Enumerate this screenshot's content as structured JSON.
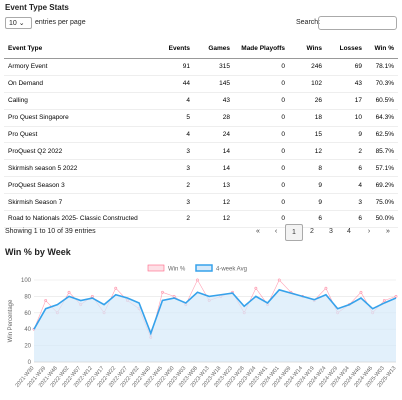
{
  "header": {
    "title": "Event Type Stats"
  },
  "controls": {
    "page_size": "10",
    "page_size_suffix": "entries per page",
    "search_label": "Search:"
  },
  "table": {
    "headers": [
      "Event Type",
      "Events",
      "Games",
      "Made Playoffs",
      "Wins",
      "Losses",
      "Win %"
    ],
    "rows": [
      [
        "Armory Event",
        "91",
        "315",
        "0",
        "246",
        "69",
        "78.1%"
      ],
      [
        "On Demand",
        "44",
        "145",
        "0",
        "102",
        "43",
        "70.3%"
      ],
      [
        "Calling",
        "4",
        "43",
        "0",
        "26",
        "17",
        "60.5%"
      ],
      [
        "Pro Quest Singapore",
        "5",
        "28",
        "0",
        "18",
        "10",
        "64.3%"
      ],
      [
        "Pro Quest",
        "4",
        "24",
        "0",
        "15",
        "9",
        "62.5%"
      ],
      [
        "ProQuest Q2 2022",
        "3",
        "14",
        "0",
        "12",
        "2",
        "85.7%"
      ],
      [
        "Skirmish season 5 2022",
        "3",
        "14",
        "0",
        "8",
        "6",
        "57.1%"
      ],
      [
        "ProQuest Season 3",
        "2",
        "13",
        "0",
        "9",
        "4",
        "69.2%"
      ],
      [
        "Skirmish Season 7",
        "3",
        "12",
        "0",
        "9",
        "3",
        "75.0%"
      ],
      [
        "Road to Nationals 2025- Classic Constructed",
        "2",
        "12",
        "0",
        "6",
        "6",
        "50.0%"
      ]
    ]
  },
  "footer": {
    "info": "Showing 1 to 10 of 39 entries",
    "pages": [
      "«",
      "‹",
      "1",
      "2",
      "3",
      "4",
      "›",
      "»"
    ]
  },
  "chart_data": {
    "type": "line",
    "title": "Win % by Week",
    "y_label": "Win Percentage",
    "categories": [
      "2021-W30",
      "2021-W39",
      "2021-W48",
      "2022-W02",
      "2022-W07",
      "2022-W12",
      "2022-W17",
      "2022-W22",
      "2022-W27",
      "2022-W32",
      "2022-W40",
      "2022-W45",
      "2022-W50",
      "2023-W03",
      "2023-W08",
      "2023-W13",
      "2023-W18",
      "2023-W23",
      "2023-W28",
      "2023-W34",
      "2023-W41",
      "2024-W01",
      "2024-W09",
      "2024-W14",
      "2024-W19",
      "2024-W24",
      "2024-W29",
      "2024-W34",
      "2024-W40",
      "2024-W46",
      "2025-W03",
      "2025-W13"
    ],
    "series": [
      {
        "name": "Win %",
        "color": "#ff6384",
        "values": [
          40,
          75,
          60,
          85,
          70,
          80,
          60,
          90,
          75,
          65,
          30,
          85,
          80,
          70,
          100,
          75,
          80,
          85,
          60,
          90,
          70,
          100,
          85,
          80,
          75,
          90,
          60,
          70,
          85,
          60,
          75,
          80
        ]
      },
      {
        "name": "4-week Avg",
        "color": "#36a2eb",
        "fill": "#d6e9fa",
        "values": [
          40,
          65,
          70,
          80,
          75,
          78,
          70,
          82,
          78,
          72,
          35,
          75,
          78,
          72,
          85,
          80,
          82,
          84,
          68,
          80,
          72,
          88,
          84,
          80,
          76,
          82,
          65,
          70,
          78,
          65,
          72,
          78
        ]
      }
    ],
    "ylim": [
      0,
      100
    ],
    "yticks": [
      0,
      20,
      40,
      60,
      80,
      100
    ],
    "grid": true
  }
}
